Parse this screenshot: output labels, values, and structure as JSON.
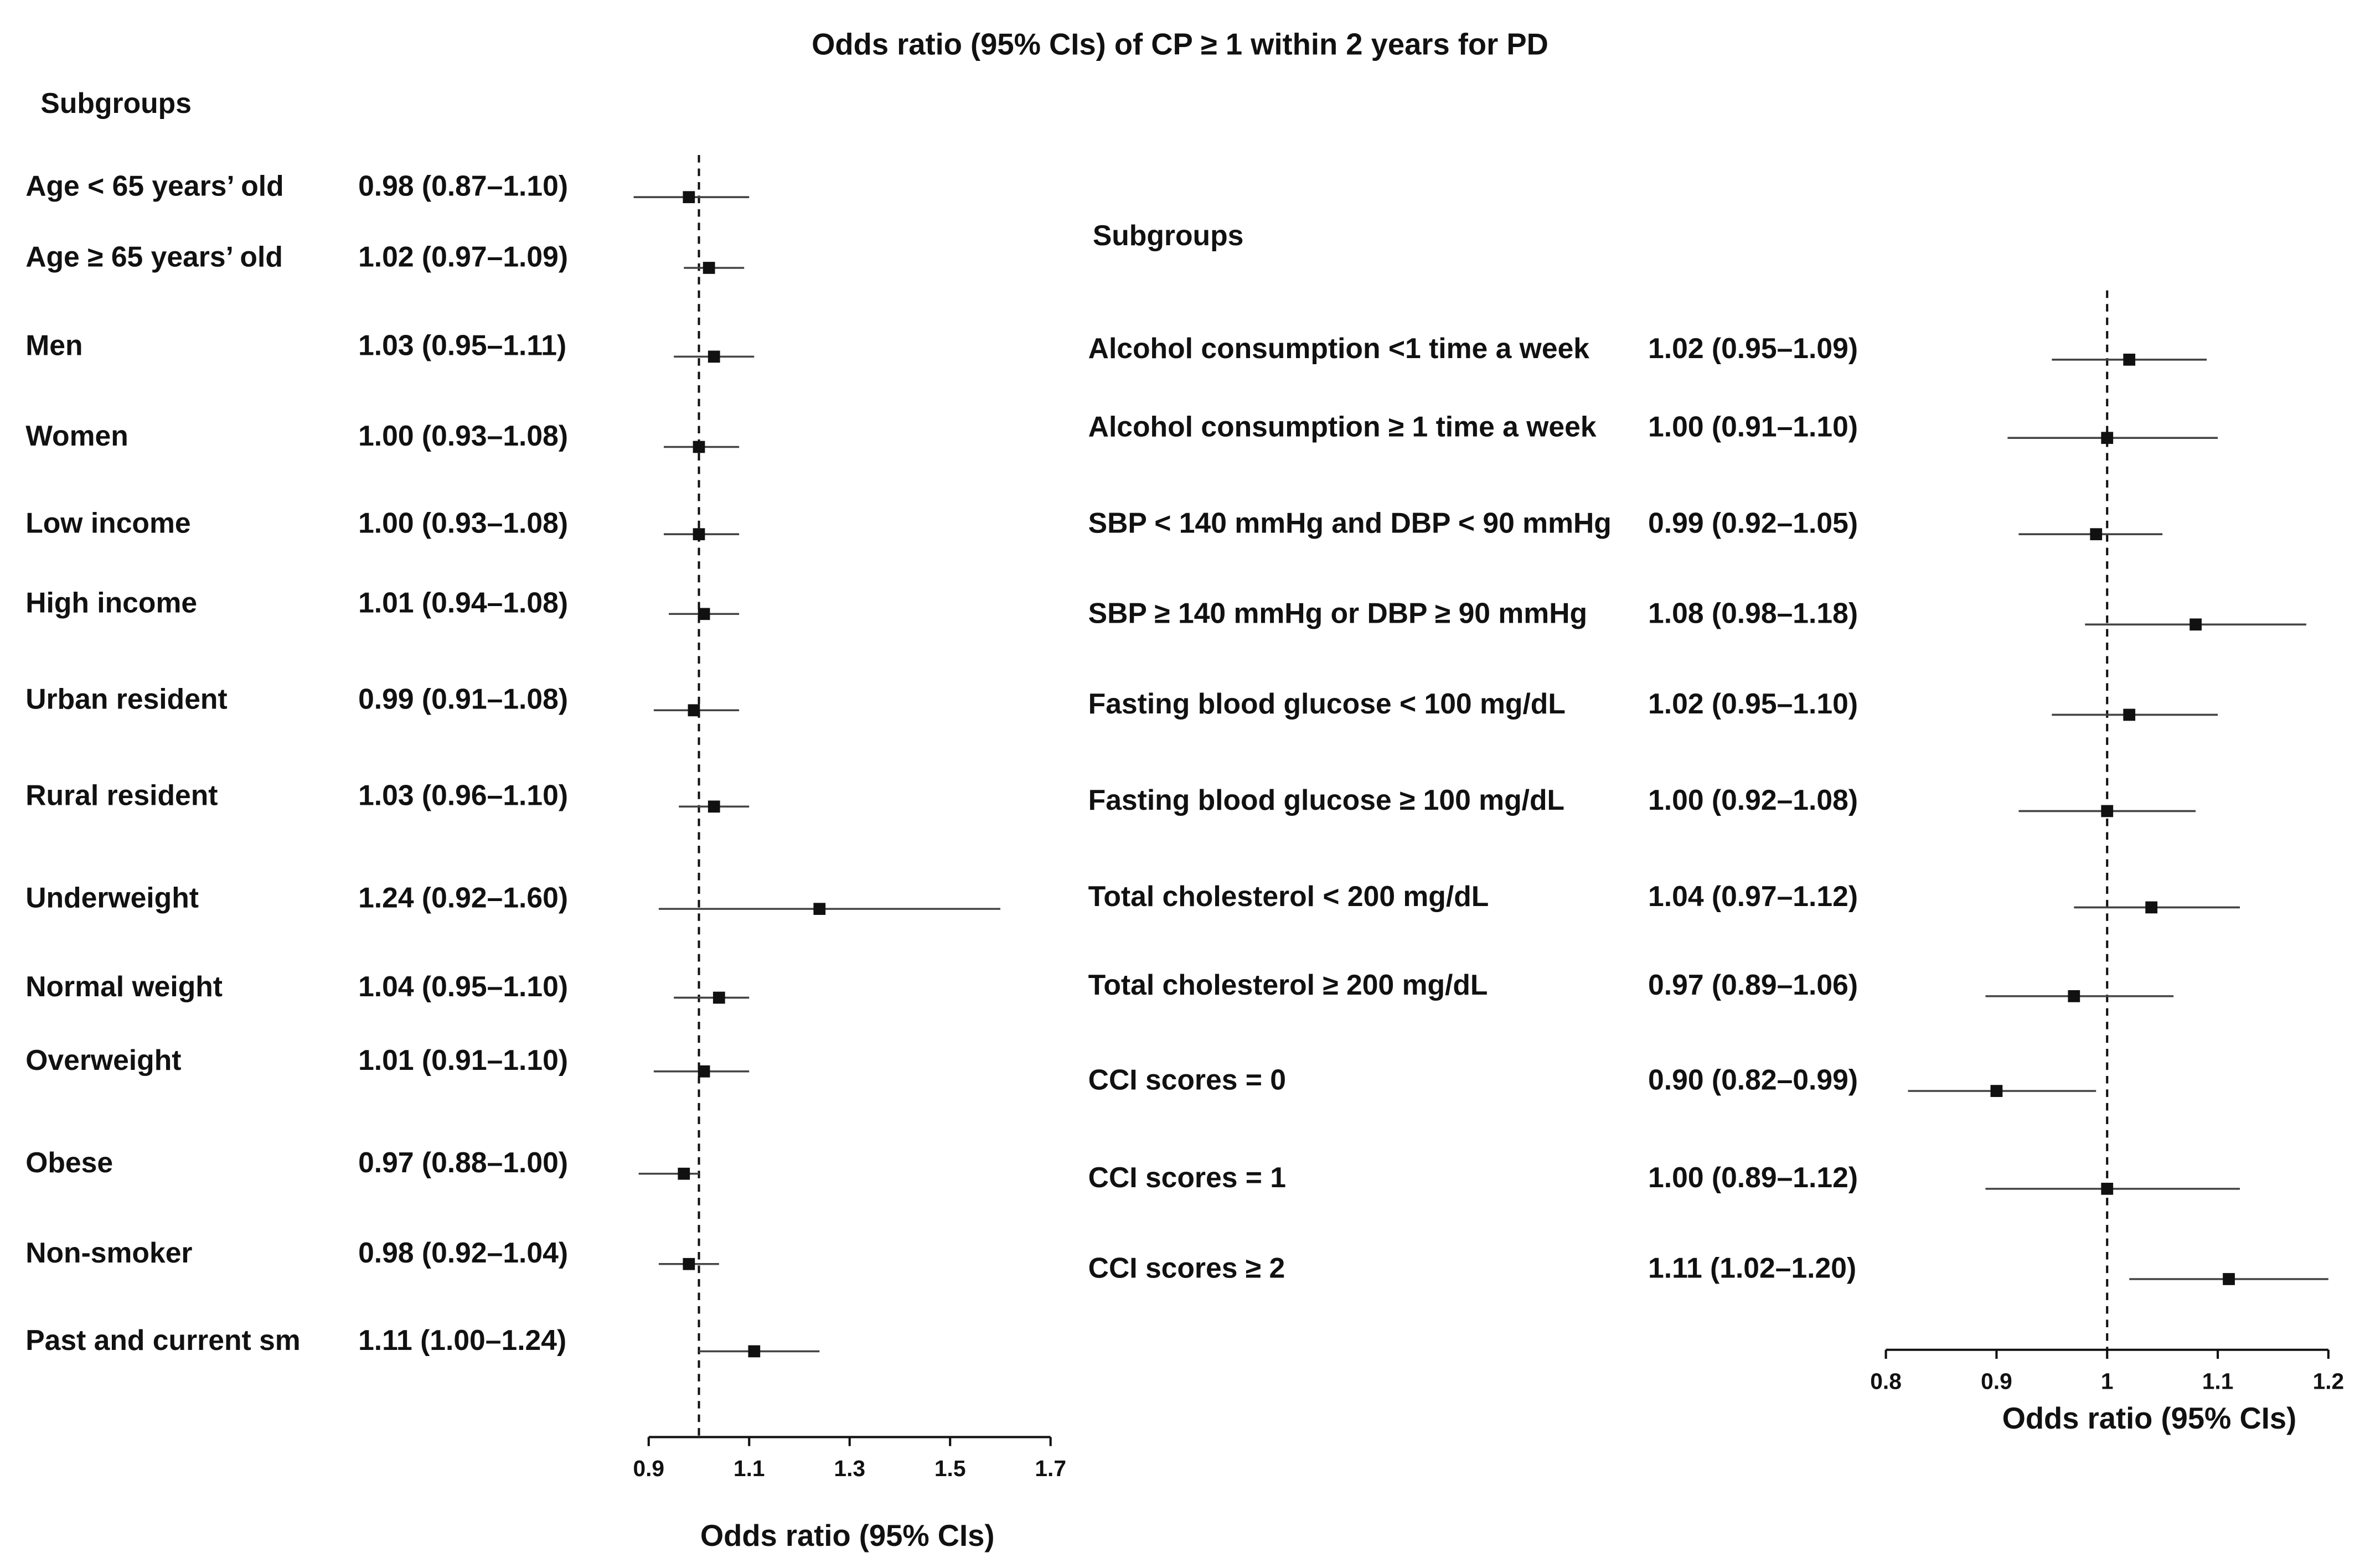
{
  "title": "Odds ratio (95% CIs) of CP ≥ 1 within 2 years for PD",
  "chart_data": [
    {
      "type": "forest",
      "subgroup_header": "Subgroups",
      "x_label": "Odds  ratio (95% CIs)",
      "categories": [
        "Age < 65 years’ old",
        "Age ≥ 65 years’ old",
        "Men",
        "Women",
        "Low income",
        "High income",
        "Urban resident",
        "Rural resident",
        "Underweight",
        "Normal weight",
        "Overweight",
        "Obese",
        "Non-smoker",
        "Past and current sm"
      ],
      "values": [
        0.98,
        1.02,
        1.03,
        1.0,
        1.0,
        1.01,
        0.99,
        1.03,
        1.24,
        1.04,
        1.01,
        0.97,
        0.98,
        1.11
      ],
      "lower": [
        0.87,
        0.97,
        0.95,
        0.93,
        0.93,
        0.94,
        0.91,
        0.96,
        0.92,
        0.95,
        0.91,
        0.88,
        0.92,
        1.0
      ],
      "upper": [
        1.1,
        1.09,
        1.11,
        1.08,
        1.08,
        1.08,
        1.08,
        1.1,
        1.6,
        1.1,
        1.1,
        1.0,
        1.04,
        1.24
      ],
      "value_labels": [
        "0.98 (0.87–1.10)",
        "1.02 (0.97–1.09)",
        "1.03 (0.95–1.11)",
        "1.00 (0.93–1.08)",
        "1.00 (0.93–1.08)",
        "1.01 (0.94–1.08)",
        "0.99 (0.91–1.08)",
        "1.03 (0.96–1.10)",
        "1.24 (0.92–1.60)",
        "1.04 (0.95–1.10)",
        "1.01 (0.91–1.10)",
        "0.97 (0.88–1.00)",
        "0.98 (0.92–1.04)",
        "1.11 (1.00–1.24)"
      ],
      "xlim": [
        0.9,
        1.7
      ],
      "xticks": [
        0.9,
        1.1,
        1.3,
        1.5,
        1.7
      ],
      "reference": 1,
      "color": "#111111"
    },
    {
      "type": "forest",
      "subgroup_header": "Subgroups",
      "x_label": "Odds  ratio (95% CIs)",
      "categories": [
        "Alcohol consumption <1 time a week",
        "Alcohol consumption ≥ 1 time a week",
        "SBP < 140 mmHg and DBP < 90 mmHg",
        "SBP ≥  140 mmHg or DBP ≥  90 mmHg",
        "Fasting blood glucose < 100 mg/dL",
        "Fasting blood glucose ≥ 100 mg/dL",
        "Total cholesterol < 200 mg/dL",
        "Total cholesterol ≥  200 mg/dL",
        "CCI scores = 0",
        "CCI scores = 1",
        "CCI scores ≥ 2"
      ],
      "values": [
        1.02,
        1.0,
        0.99,
        1.08,
        1.02,
        1.0,
        1.04,
        0.97,
        0.9,
        1.0,
        1.11
      ],
      "lower": [
        0.95,
        0.91,
        0.92,
        0.98,
        0.95,
        0.92,
        0.97,
        0.89,
        0.82,
        0.89,
        1.02
      ],
      "upper": [
        1.09,
        1.1,
        1.05,
        1.18,
        1.1,
        1.08,
        1.12,
        1.06,
        0.99,
        1.12,
        1.2
      ],
      "value_labels": [
        "1.02 (0.95–1.09)",
        "1.00 (0.91–1.10)",
        "0.99 (0.92–1.05)",
        "1.08 (0.98–1.18)",
        "1.02 (0.95–1.10)",
        "1.00 (0.92–1.08)",
        "1.04 (0.97–1.12)",
        "0.97 (0.89–1.06)",
        "0.90 (0.82–0.99)",
        "1.00 (0.89–1.12)",
        "1.11 (1.02–1.20)"
      ],
      "xlim": [
        0.8,
        1.2
      ],
      "xticks": [
        0.8,
        0.9,
        1,
        1.1,
        1.2
      ],
      "reference": 1,
      "color": "#111111"
    }
  ]
}
